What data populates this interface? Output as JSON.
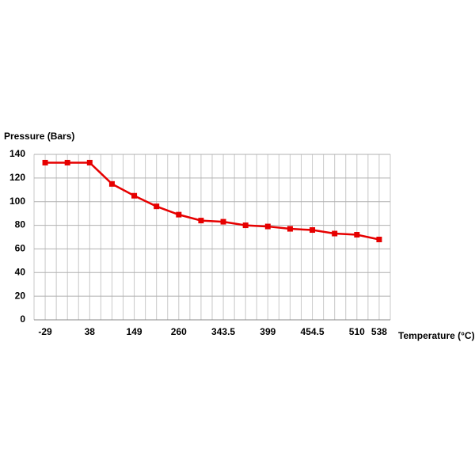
{
  "chart_data": {
    "type": "line",
    "y_label": "Pressure (Bars)",
    "x_label": "Temperature (°C)",
    "categories": [
      "-29",
      null,
      "38",
      null,
      "149",
      null,
      "260",
      null,
      "343.5",
      null,
      "399",
      null,
      "454.5",
      null,
      "510",
      "538"
    ],
    "series": [
      {
        "name": "Pressure",
        "color": "#e60000",
        "values": [
          133,
          133,
          133,
          115,
          105,
          96,
          89,
          84,
          83,
          80,
          79,
          77,
          76,
          73,
          72,
          68
        ]
      }
    ],
    "ylim": [
      0,
      140
    ],
    "yticks": [
      0,
      20,
      40,
      60,
      80,
      100,
      120,
      140
    ],
    "grid": true
  }
}
